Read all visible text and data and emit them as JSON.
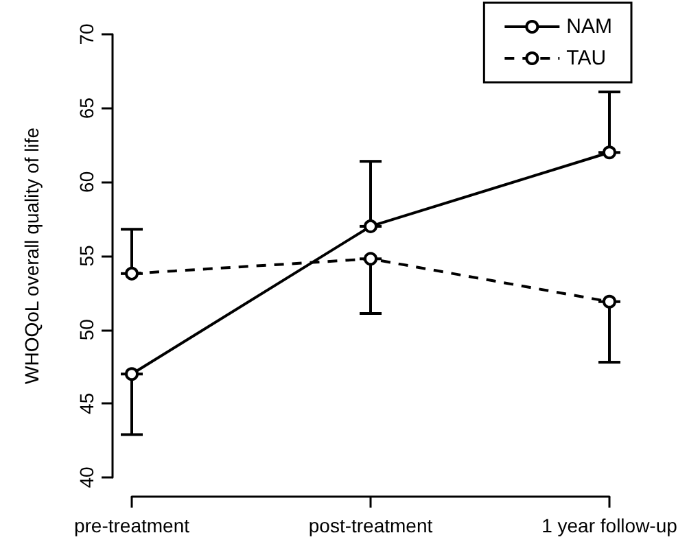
{
  "chart_data": {
    "type": "line",
    "ylabel": "WHOQoL overall quality of life",
    "categories": [
      "pre-treatment",
      "post-treatment",
      "1 year follow-up"
    ],
    "series": [
      {
        "name": "NAM",
        "color": "#000000",
        "line_style": "solid",
        "values": [
          47.0,
          57.0,
          62.0
        ],
        "errors": [
          [
            42.9,
            47.0
          ],
          [
            57.0,
            61.4
          ],
          [
            62.0,
            66.1
          ]
        ]
      },
      {
        "name": "TAU",
        "color": "#000000",
        "line_style": "dashed",
        "values": [
          53.8,
          54.8,
          51.9
        ],
        "errors": [
          [
            53.8,
            56.8
          ],
          [
            51.1,
            54.8
          ],
          [
            47.8,
            51.9
          ]
        ]
      }
    ],
    "ylim": [
      40,
      70
    ],
    "yticks": [
      40,
      45,
      50,
      55,
      60,
      65,
      70
    ],
    "grid": false,
    "legend": "top right",
    "marker": "circle"
  }
}
